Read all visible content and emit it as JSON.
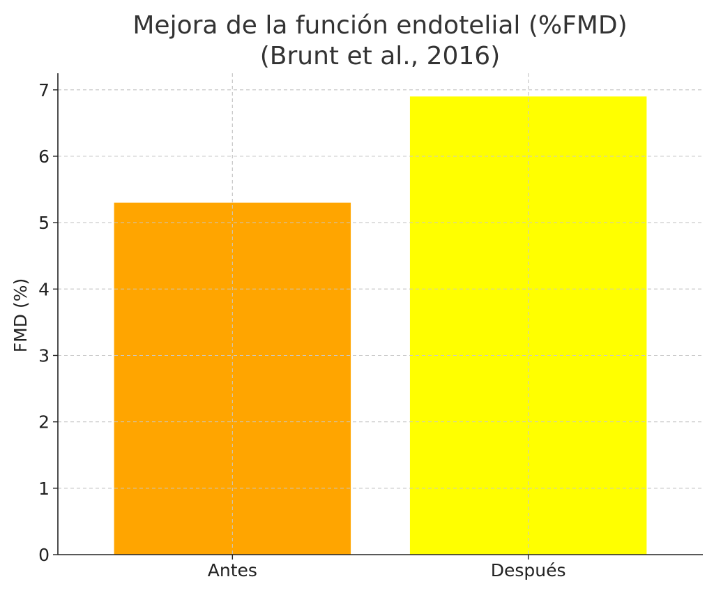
{
  "chart_data": {
    "type": "bar",
    "title": "Mejora de la función endotelial (%FMD)",
    "subtitle": "(Brunt et al., 2016)",
    "xlabel": "",
    "ylabel": "FMD (%)",
    "categories": [
      "Antes",
      "Después"
    ],
    "values": [
      5.3,
      6.9
    ],
    "colors": [
      "#ffa500",
      "#ffff00"
    ],
    "ylim": [
      0,
      7.25
    ],
    "yticks": [
      "0",
      "1",
      "2",
      "3",
      "4",
      "5",
      "6",
      "7"
    ],
    "grid": true,
    "legend": "none"
  }
}
